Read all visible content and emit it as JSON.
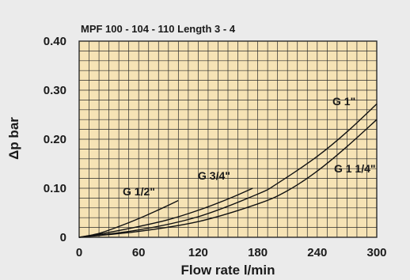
{
  "colors": {
    "background": "#ebebeb",
    "plot_fill": "#f6e3b5",
    "grid": "#2a2a2a",
    "series": "#111111"
  },
  "chart_data": {
    "type": "line",
    "title": "MPF 100 - 104 - 110 Length 3 - 4",
    "xlabel": "Flow rate l/min",
    "ylabel": "Δp bar",
    "xlim": [
      0,
      300
    ],
    "ylim": [
      0,
      0.4
    ],
    "grid": true,
    "x_ticks": [
      0,
      60,
      120,
      180,
      240,
      300
    ],
    "x_tick_labels": [
      "0",
      "60",
      "120",
      "180",
      "240",
      "300"
    ],
    "y_ticks": [
      0,
      0.1,
      0.2,
      0.3,
      0.4
    ],
    "y_tick_labels": [
      "0",
      "0.10",
      "0.20",
      "0.30",
      "0.40"
    ],
    "series": [
      {
        "name": "G 1/2\"",
        "x": [
          0,
          20,
          40,
          60,
          80,
          100
        ],
        "y": [
          0,
          0.008,
          0.022,
          0.038,
          0.056,
          0.075
        ]
      },
      {
        "name": "G 3/4\"",
        "x": [
          0,
          30,
          60,
          90,
          120,
          150,
          175
        ],
        "y": [
          0,
          0.01,
          0.022,
          0.036,
          0.055,
          0.078,
          0.1
        ]
      },
      {
        "name": "G 1\"",
        "x": [
          0,
          60,
          120,
          180,
          200,
          240,
          270,
          300
        ],
        "y": [
          0,
          0.015,
          0.042,
          0.088,
          0.11,
          0.165,
          0.215,
          0.272
        ]
      },
      {
        "name": "G 1 1/4\"",
        "x": [
          0,
          60,
          120,
          180,
          210,
          240,
          270,
          300
        ],
        "y": [
          0,
          0.012,
          0.032,
          0.068,
          0.095,
          0.135,
          0.185,
          0.24
        ]
      }
    ]
  }
}
